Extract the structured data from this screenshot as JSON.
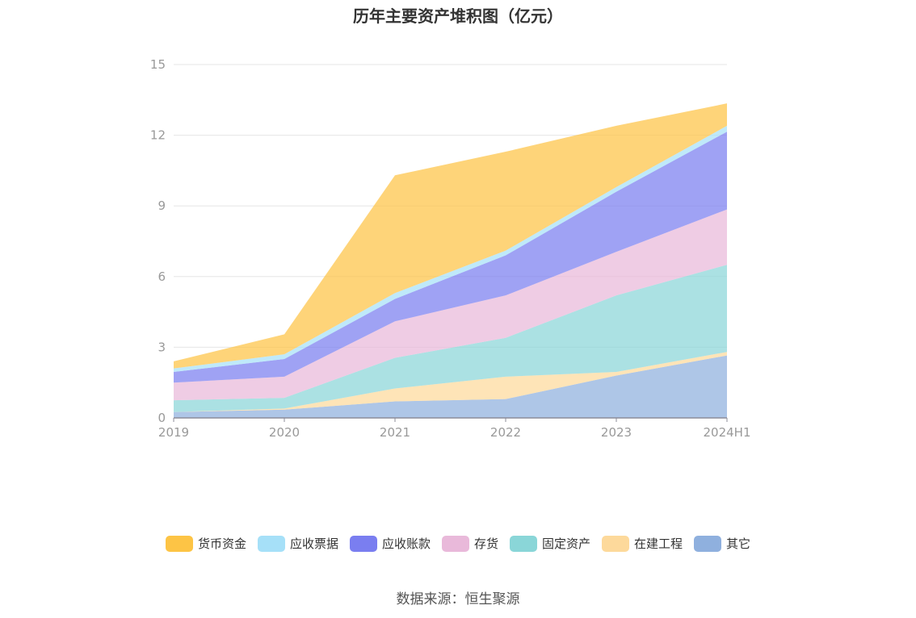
{
  "chart_data": {
    "type": "area",
    "stacked": true,
    "title": "历年主要资产堆积图（亿元）",
    "categories": [
      "2019",
      "2020",
      "2021",
      "2022",
      "2023",
      "2024H1"
    ],
    "ylim": [
      0,
      15
    ],
    "yticks": [
      "0",
      "3",
      "6",
      "9",
      "12",
      "15"
    ],
    "grid": true,
    "legend_position": "bottom",
    "series": [
      {
        "name": "其它",
        "color": "#8fb0de",
        "values": [
          0.25,
          0.35,
          0.7,
          0.8,
          1.8,
          2.65
        ]
      },
      {
        "name": "在建工程",
        "color": "#fdd99b",
        "values": [
          0.0,
          0.05,
          0.55,
          0.95,
          0.15,
          0.15
        ]
      },
      {
        "name": "固定资产",
        "color": "#8ad6d8",
        "values": [
          0.5,
          0.45,
          1.3,
          1.65,
          3.25,
          3.7
        ]
      },
      {
        "name": "存货",
        "color": "#e9b9da",
        "values": [
          0.75,
          0.9,
          1.55,
          1.8,
          1.85,
          2.35
        ]
      },
      {
        "name": "应收账款",
        "color": "#7a7ef0",
        "values": [
          0.45,
          0.75,
          0.95,
          1.7,
          2.55,
          3.3
        ]
      },
      {
        "name": "应收票据",
        "color": "#a6e0f8",
        "values": [
          0.15,
          0.2,
          0.25,
          0.2,
          0.2,
          0.25
        ]
      },
      {
        "name": "货币资金",
        "color": "#fdc445",
        "values": [
          0.3,
          0.85,
          5.0,
          4.2,
          2.6,
          0.95
        ]
      }
    ]
  },
  "legend": [
    {
      "label": "货币资金",
      "color": "#fdc445"
    },
    {
      "label": "应收票据",
      "color": "#a6e0f8"
    },
    {
      "label": "应收账款",
      "color": "#7a7ef0"
    },
    {
      "label": "存货",
      "color": "#e9b9da"
    },
    {
      "label": "固定资产",
      "color": "#8ad6d8"
    },
    {
      "label": "在建工程",
      "color": "#fdd99b"
    },
    {
      "label": "其它",
      "color": "#8fb0de"
    }
  ],
  "source": "数据来源：恒生聚源"
}
